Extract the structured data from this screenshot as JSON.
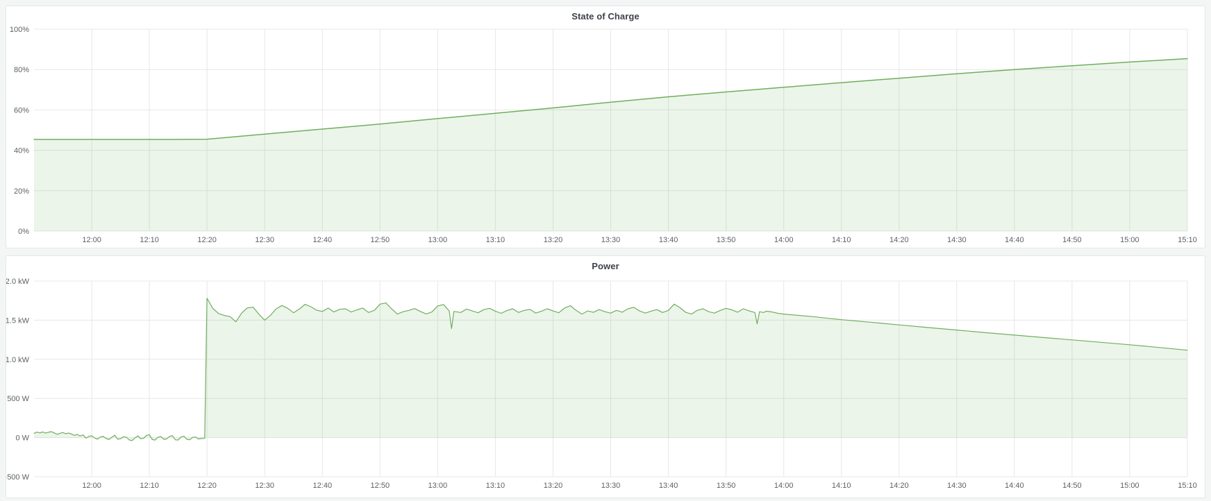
{
  "theme": {
    "page_bg": "#f4f5f5",
    "panel_bg": "#ffffff",
    "panel_border": "#e3e6e8",
    "grid_color": "#e7e7e7",
    "axis_text_color": "#5b5f65",
    "title_color": "#3e4149",
    "series_green": "#6fae5e"
  },
  "chart_data": [
    {
      "type": "area",
      "title": "State of Charge",
      "xlabel": "",
      "ylabel": "",
      "legend": "none",
      "grid": true,
      "x": {
        "unit": "time",
        "start_time": "11:50",
        "end_time": "15:10",
        "range_minutes": [
          0,
          200
        ],
        "ticks": [
          {
            "t": 10,
            "label": "12:00"
          },
          {
            "t": 20,
            "label": "12:10"
          },
          {
            "t": 30,
            "label": "12:20"
          },
          {
            "t": 40,
            "label": "12:30"
          },
          {
            "t": 50,
            "label": "12:40"
          },
          {
            "t": 60,
            "label": "12:50"
          },
          {
            "t": 70,
            "label": "13:00"
          },
          {
            "t": 80,
            "label": "13:10"
          },
          {
            "t": 90,
            "label": "13:20"
          },
          {
            "t": 100,
            "label": "13:30"
          },
          {
            "t": 110,
            "label": "13:40"
          },
          {
            "t": 120,
            "label": "13:50"
          },
          {
            "t": 130,
            "label": "14:00"
          },
          {
            "t": 140,
            "label": "14:10"
          },
          {
            "t": 150,
            "label": "14:20"
          },
          {
            "t": 160,
            "label": "14:30"
          },
          {
            "t": 170,
            "label": "14:40"
          },
          {
            "t": 180,
            "label": "14:50"
          },
          {
            "t": 190,
            "label": "15:00"
          },
          {
            "t": 200,
            "label": "15:10"
          }
        ]
      },
      "y": {
        "min": 0,
        "max": 100,
        "unit": "percent",
        "ticks": [
          {
            "v": 0,
            "label": "0%"
          },
          {
            "v": 20,
            "label": "20%"
          },
          {
            "v": 40,
            "label": "40%"
          },
          {
            "v": 60,
            "label": "60%"
          },
          {
            "v": 80,
            "label": "80%"
          },
          {
            "v": 100,
            "label": "100%"
          }
        ]
      },
      "series": [
        {
          "name": "State of Charge",
          "color": "#6fae5e",
          "fill_opacity": 0.13,
          "fill_baseline": 0,
          "points": [
            [
              0,
              45.4
            ],
            [
              10,
              45.4
            ],
            [
              20,
              45.4
            ],
            [
              25,
              45.4
            ],
            [
              30,
              45.5
            ],
            [
              40,
              48.0
            ],
            [
              50,
              50.5
            ],
            [
              60,
              53.0
            ],
            [
              70,
              55.7
            ],
            [
              80,
              58.3
            ],
            [
              90,
              61.0
            ],
            [
              100,
              63.8
            ],
            [
              110,
              66.5
            ],
            [
              120,
              68.9
            ],
            [
              130,
              71.2
            ],
            [
              140,
              73.5
            ],
            [
              150,
              75.7
            ],
            [
              160,
              77.9
            ],
            [
              170,
              80.0
            ],
            [
              180,
              81.9
            ],
            [
              190,
              83.7
            ],
            [
              200,
              85.4
            ]
          ]
        }
      ]
    },
    {
      "type": "area",
      "title": "Power",
      "xlabel": "",
      "ylabel": "",
      "legend": "none",
      "grid": true,
      "x": {
        "unit": "time",
        "start_time": "11:50",
        "end_time": "15:10",
        "range_minutes": [
          0,
          200
        ],
        "ticks": [
          {
            "t": 10,
            "label": "12:00"
          },
          {
            "t": 20,
            "label": "12:10"
          },
          {
            "t": 30,
            "label": "12:20"
          },
          {
            "t": 40,
            "label": "12:30"
          },
          {
            "t": 50,
            "label": "12:40"
          },
          {
            "t": 60,
            "label": "12:50"
          },
          {
            "t": 70,
            "label": "13:00"
          },
          {
            "t": 80,
            "label": "13:10"
          },
          {
            "t": 90,
            "label": "13:20"
          },
          {
            "t": 100,
            "label": "13:30"
          },
          {
            "t": 110,
            "label": "13:40"
          },
          {
            "t": 120,
            "label": "13:50"
          },
          {
            "t": 130,
            "label": "14:00"
          },
          {
            "t": 140,
            "label": "14:10"
          },
          {
            "t": 150,
            "label": "14:20"
          },
          {
            "t": 160,
            "label": "14:30"
          },
          {
            "t": 170,
            "label": "14:40"
          },
          {
            "t": 180,
            "label": "14:50"
          },
          {
            "t": 190,
            "label": "15:00"
          },
          {
            "t": 200,
            "label": "15:10"
          }
        ]
      },
      "y": {
        "min": -500,
        "max": 2000,
        "unit": "watts",
        "ticks": [
          {
            "v": -500,
            "label": "-500 W"
          },
          {
            "v": 0,
            "label": "0 W"
          },
          {
            "v": 500,
            "label": "500 W"
          },
          {
            "v": 1000,
            "label": "1.0 kW"
          },
          {
            "v": 1500,
            "label": "1.5 kW"
          },
          {
            "v": 2000,
            "label": "2.0 kW"
          }
        ]
      },
      "series": [
        {
          "name": "Power",
          "color": "#6fae5e",
          "fill_opacity": 0.13,
          "fill_baseline": 0,
          "points": [
            [
              0,
              55
            ],
            [
              0.5,
              70
            ],
            [
              1,
              60
            ],
            [
              1.5,
              72
            ],
            [
              2,
              58
            ],
            [
              2.5,
              68
            ],
            [
              3,
              75
            ],
            [
              3.5,
              60
            ],
            [
              4,
              42
            ],
            [
              4.5,
              55
            ],
            [
              5,
              65
            ],
            [
              5.5,
              50
            ],
            [
              6,
              58
            ],
            [
              6.5,
              45
            ],
            [
              7,
              28
            ],
            [
              7.5,
              40
            ],
            [
              8,
              20
            ],
            [
              8.5,
              35
            ],
            [
              9,
              -8
            ],
            [
              9.5,
              15
            ],
            [
              10,
              25
            ],
            [
              10.5,
              -5
            ],
            [
              11,
              -20
            ],
            [
              11.5,
              8
            ],
            [
              12,
              15
            ],
            [
              12.5,
              -12
            ],
            [
              13,
              -25
            ],
            [
              13.5,
              5
            ],
            [
              14,
              30
            ],
            [
              14.5,
              -20
            ],
            [
              15,
              -15
            ],
            [
              15.5,
              10
            ],
            [
              16,
              5
            ],
            [
              16.5,
              -30
            ],
            [
              17,
              -38
            ],
            [
              17.5,
              -5
            ],
            [
              18,
              22
            ],
            [
              18.5,
              -15
            ],
            [
              19,
              -10
            ],
            [
              19.5,
              28
            ],
            [
              20,
              38
            ],
            [
              20.5,
              -25
            ],
            [
              21,
              -32
            ],
            [
              21.5,
              5
            ],
            [
              22,
              12
            ],
            [
              22.5,
              -22
            ],
            [
              23,
              -18
            ],
            [
              23.5,
              15
            ],
            [
              24,
              26
            ],
            [
              24.5,
              -28
            ],
            [
              25,
              -32
            ],
            [
              25.5,
              8
            ],
            [
              26,
              18
            ],
            [
              26.5,
              -22
            ],
            [
              27,
              -28
            ],
            [
              27.5,
              2
            ],
            [
              28,
              8
            ],
            [
              28.5,
              -18
            ],
            [
              29,
              -12
            ],
            [
              29.6,
              -10
            ],
            [
              30,
              1780
            ],
            [
              31,
              1650
            ],
            [
              32,
              1585
            ],
            [
              33,
              1560
            ],
            [
              34,
              1545
            ],
            [
              35,
              1480
            ],
            [
              36,
              1590
            ],
            [
              37,
              1658
            ],
            [
              38,
              1665
            ],
            [
              39,
              1575
            ],
            [
              40,
              1500
            ],
            [
              41,
              1562
            ],
            [
              42,
              1645
            ],
            [
              43,
              1688
            ],
            [
              44,
              1652
            ],
            [
              45,
              1595
            ],
            [
              46,
              1642
            ],
            [
              47,
              1702
            ],
            [
              48,
              1672
            ],
            [
              49,
              1628
            ],
            [
              50,
              1612
            ],
            [
              51,
              1655
            ],
            [
              52,
              1605
            ],
            [
              53,
              1638
            ],
            [
              54,
              1645
            ],
            [
              55,
              1605
            ],
            [
              56,
              1632
            ],
            [
              57,
              1655
            ],
            [
              58,
              1598
            ],
            [
              59,
              1625
            ],
            [
              60,
              1705
            ],
            [
              61,
              1722
            ],
            [
              62,
              1645
            ],
            [
              63,
              1578
            ],
            [
              64,
              1608
            ],
            [
              65,
              1625
            ],
            [
              66,
              1648
            ],
            [
              67,
              1612
            ],
            [
              68,
              1580
            ],
            [
              69,
              1605
            ],
            [
              70,
              1682
            ],
            [
              71,
              1700
            ],
            [
              72,
              1618
            ],
            [
              72.4,
              1392
            ],
            [
              72.8,
              1612
            ],
            [
              74,
              1598
            ],
            [
              75,
              1642
            ],
            [
              76,
              1618
            ],
            [
              77,
              1595
            ],
            [
              78,
              1635
            ],
            [
              79,
              1652
            ],
            [
              80,
              1615
            ],
            [
              81,
              1588
            ],
            [
              82,
              1622
            ],
            [
              83,
              1645
            ],
            [
              84,
              1598
            ],
            [
              85,
              1625
            ],
            [
              86,
              1638
            ],
            [
              87,
              1590
            ],
            [
              88,
              1615
            ],
            [
              89,
              1645
            ],
            [
              90,
              1618
            ],
            [
              91,
              1595
            ],
            [
              92,
              1655
            ],
            [
              93,
              1685
            ],
            [
              94,
              1625
            ],
            [
              95,
              1578
            ],
            [
              96,
              1618
            ],
            [
              97,
              1600
            ],
            [
              98,
              1635
            ],
            [
              99,
              1608
            ],
            [
              100,
              1590
            ],
            [
              101,
              1625
            ],
            [
              102,
              1602
            ],
            [
              103,
              1645
            ],
            [
              104,
              1665
            ],
            [
              105,
              1618
            ],
            [
              106,
              1590
            ],
            [
              107,
              1615
            ],
            [
              108,
              1635
            ],
            [
              109,
              1598
            ],
            [
              110,
              1625
            ],
            [
              111,
              1705
            ],
            [
              112,
              1660
            ],
            [
              113,
              1600
            ],
            [
              114,
              1578
            ],
            [
              115,
              1625
            ],
            [
              116,
              1645
            ],
            [
              117,
              1608
            ],
            [
              118,
              1590
            ],
            [
              119,
              1625
            ],
            [
              120,
              1652
            ],
            [
              121,
              1632
            ],
            [
              122,
              1602
            ],
            [
              123,
              1645
            ],
            [
              124,
              1618
            ],
            [
              125,
              1598
            ],
            [
              125.4,
              1452
            ],
            [
              125.8,
              1608
            ],
            [
              126.5,
              1598
            ],
            [
              127,
              1615
            ],
            [
              128,
              1605
            ],
            [
              129,
              1588
            ],
            [
              130,
              1578
            ],
            [
              135,
              1545
            ],
            [
              140,
              1506
            ],
            [
              145,
              1474
            ],
            [
              150,
              1440
            ],
            [
              155,
              1406
            ],
            [
              160,
              1374
            ],
            [
              165,
              1340
            ],
            [
              170,
              1309
            ],
            [
              175,
              1278
            ],
            [
              180,
              1248
            ],
            [
              185,
              1217
            ],
            [
              190,
              1186
            ],
            [
              195,
              1152
            ],
            [
              200,
              1116
            ]
          ]
        }
      ]
    }
  ]
}
